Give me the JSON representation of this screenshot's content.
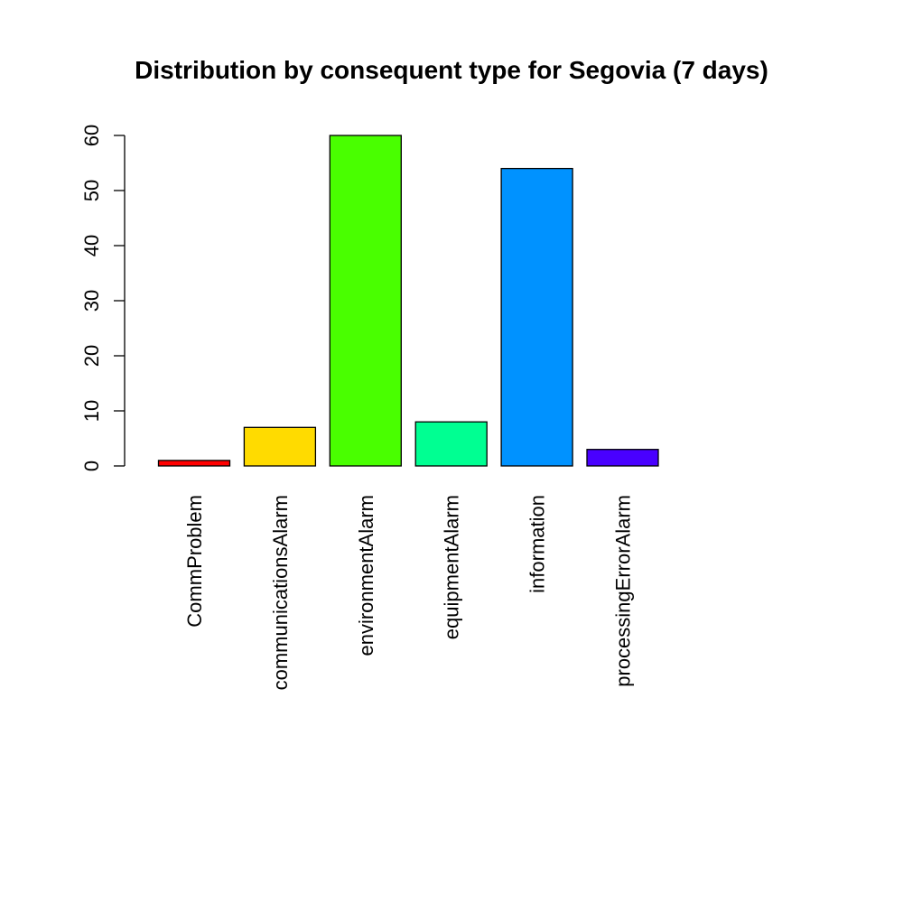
{
  "chart_data": {
    "type": "bar",
    "title": "Distribution by consequent type for Segovia (7 days)",
    "xlabel": "",
    "ylabel": "",
    "categories": [
      "CommProblem",
      "communicationsAlarm",
      "environmentAlarm",
      "equipmentAlarm",
      "information",
      "processingErrorAlarm",
      ""
    ],
    "values": [
      1,
      7,
      60,
      8,
      54,
      3,
      0
    ],
    "colors": [
      "#FF0000",
      "#FFDB00",
      "#49FF00",
      "#00FF92",
      "#0092FF",
      "#4900FF",
      "#FF00DB"
    ],
    "ylim": [
      0,
      60
    ],
    "yticks": [
      0,
      10,
      20,
      30,
      40,
      50,
      60
    ],
    "grid": false,
    "legend": "none"
  }
}
